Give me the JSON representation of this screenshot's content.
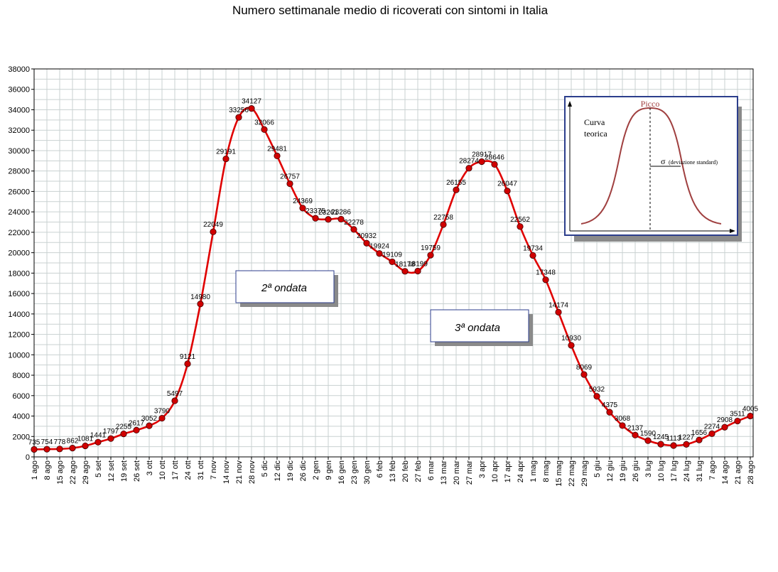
{
  "chart_data": {
    "type": "line",
    "title": "Numero settimanale medio di ricoverati con sintomi in Italia",
    "xlabel": "",
    "ylabel": "",
    "ylim": [
      0,
      38000
    ],
    "ytick_step": 2000,
    "grid": true,
    "series_color": "#e00000",
    "marker_color": "#d00000",
    "categories": [
      "1 ago",
      "8 ago",
      "15 ago",
      "22 ago",
      "29 ago",
      "5 set",
      "12 set",
      "19 set",
      "26 set",
      "3 ott",
      "10 ott",
      "17 ott",
      "24 ott",
      "31 ott",
      "7 nov",
      "14 nov",
      "21 nov",
      "28 nov",
      "5 dic",
      "12 dic",
      "19 dic",
      "26 dic",
      "2 gen",
      "9 gen",
      "16 gen",
      "23 gen",
      "30 gen",
      "6 feb",
      "13 feb",
      "20 feb",
      "27 feb",
      "6 mar",
      "13 mar",
      "20 mar",
      "27 mar",
      "3 apr",
      "10 apr",
      "17 apr",
      "24 apr",
      "1 mag",
      "8 mag",
      "15 mag",
      "22 mag",
      "29 mag",
      "5 giu",
      "12 giu",
      "19 giu",
      "26 giu",
      "3 lug",
      "10 lug",
      "17 lug",
      "24 lug",
      "31 lug",
      "7 ago",
      "14 ago",
      "21 ago",
      "28 ago"
    ],
    "values": [
      735,
      754,
      778,
      862,
      1081,
      1441,
      1797,
      2255,
      2617,
      3052,
      3790,
      5497,
      9121,
      14980,
      22049,
      29191,
      33256,
      34127,
      32066,
      29481,
      26757,
      24369,
      23375,
      23261,
      23286,
      22278,
      20932,
      19924,
      19109,
      18178,
      18199,
      19759,
      22758,
      26155,
      28274,
      28917,
      28646,
      26047,
      22562,
      19734,
      17348,
      14174,
      10930,
      8069,
      5932,
      4375,
      3068,
      2137,
      1590,
      1245,
      1113,
      1227,
      1656,
      2274,
      2908,
      3511,
      4005
    ],
    "annotations": [
      "2ª ondata",
      "3ª ondata"
    ]
  },
  "inset": {
    "peak_label": "Picco",
    "curve_label_line1": "Curva",
    "curve_label_line2": "teorica",
    "sigma_symbol": "σ",
    "sigma_label": "(deviazione standard)"
  }
}
